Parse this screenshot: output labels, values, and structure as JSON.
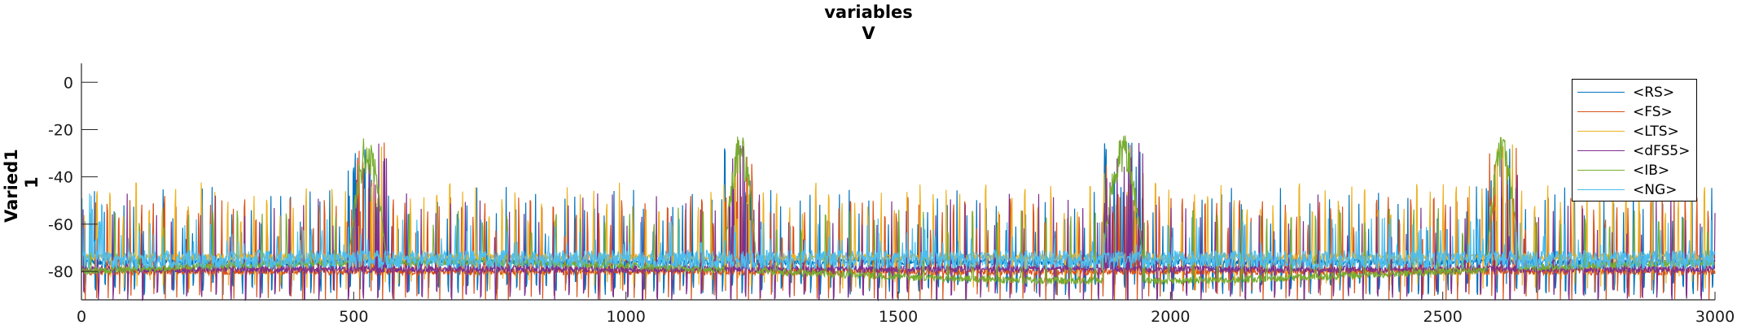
{
  "chart_data": {
    "type": "line",
    "title": [
      "variables",
      "V"
    ],
    "ylabel": [
      "Varied1",
      "1"
    ],
    "xlabel": "",
    "xlim": [
      0,
      3000
    ],
    "ylim": [
      -92,
      8
    ],
    "xticks": [
      0,
      500,
      1000,
      1500,
      2000,
      2500,
      3000
    ],
    "yticks": [
      0,
      -20,
      -40,
      -60,
      -80
    ],
    "xtick_labels": [
      "0",
      "500",
      "1000",
      "1500",
      "2000",
      "2500",
      "3000"
    ],
    "ytick_labels": [
      "0",
      "-20",
      "-40",
      "-60",
      "-80"
    ],
    "grid": false,
    "legend_position": "top-right",
    "bursts_IB": [
      [
        490,
        560
      ],
      [
        1180,
        1240
      ],
      [
        1875,
        1950
      ],
      [
        2580,
        2640
      ]
    ],
    "series": [
      {
        "name": "<RS>",
        "color": "#0072BD",
        "baseline": -76
      },
      {
        "name": "<FS>",
        "color": "#D95319",
        "baseline": -80
      },
      {
        "name": "<LTS>",
        "color": "#EDB120",
        "baseline": -74
      },
      {
        "name": "<dFS5>",
        "color": "#7E2F8E",
        "baseline": -79
      },
      {
        "name": "<IB>",
        "color": "#77AC30",
        "baseline": -80
      },
      {
        "name": "<NG>",
        "color": "#4DBEEE",
        "baseline": -75
      }
    ]
  },
  "legend": {
    "items": [
      {
        "label": "<RS>"
      },
      {
        "label": "<FS>"
      },
      {
        "label": "<LTS>"
      },
      {
        "label": "<dFS5>"
      },
      {
        "label": "<IB>"
      },
      {
        "label": "<NG>"
      }
    ]
  }
}
